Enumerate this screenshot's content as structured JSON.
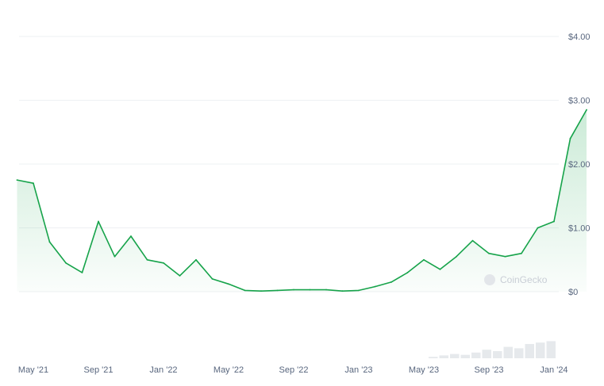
{
  "chart_data": {
    "type": "area",
    "title": "",
    "xlabel": "",
    "ylabel": "",
    "ylim": [
      0,
      4
    ],
    "y_ticks": [
      {
        "value": 0,
        "label": "$0"
      },
      {
        "value": 1,
        "label": "$1.00"
      },
      {
        "value": 2,
        "label": "$2.00"
      },
      {
        "value": 3,
        "label": "$3.00"
      },
      {
        "value": 4,
        "label": "$4.00"
      }
    ],
    "x_ticks": [
      "May '21",
      "Sep '21",
      "Jan '22",
      "May '22",
      "Sep '22",
      "Jan '23",
      "May '23",
      "Sep '23",
      "Jan '24"
    ],
    "x_range": [
      "2021-05",
      "2024-03"
    ],
    "grid": true,
    "legend": "none",
    "watermark": "CoinGecko",
    "colors": {
      "line": "#16a34a",
      "fill": "#16a34a",
      "grid": "#eef0f3",
      "volume": "#d6dae0"
    },
    "series": [
      {
        "x": [
          "2021-04",
          "2021-05",
          "2021-06",
          "2021-07",
          "2021-08",
          "2021-09",
          "2021-10",
          "2021-11",
          "2021-12",
          "2022-01",
          "2022-02",
          "2022-03",
          "2022-04",
          "2022-05",
          "2022-06",
          "2022-07",
          "2022-08",
          "2022-09",
          "2022-10",
          "2022-11",
          "2022-12",
          "2023-01",
          "2023-02",
          "2023-03",
          "2023-04",
          "2023-05",
          "2023-06",
          "2023-07",
          "2023-08",
          "2023-09",
          "2023-10",
          "2023-11",
          "2023-12",
          "2024-01",
          "2024-02",
          "2024-03"
        ],
        "values": [
          1.75,
          1.7,
          0.78,
          0.45,
          0.3,
          1.1,
          0.55,
          0.87,
          0.5,
          0.45,
          0.25,
          0.5,
          0.2,
          0.12,
          0.02,
          0.01,
          0.02,
          0.03,
          0.03,
          0.03,
          0.01,
          0.02,
          0.08,
          0.15,
          0.3,
          0.5,
          0.35,
          0.55,
          0.8,
          0.6,
          0.55,
          0.6,
          1.0,
          1.1,
          2.4,
          2.85
        ]
      }
    ],
    "volume": [
      0.05,
      0.1,
      0.15,
      0.12,
      0.2,
      0.3,
      0.25,
      0.4,
      0.35,
      0.5,
      0.55,
      0.6
    ]
  }
}
